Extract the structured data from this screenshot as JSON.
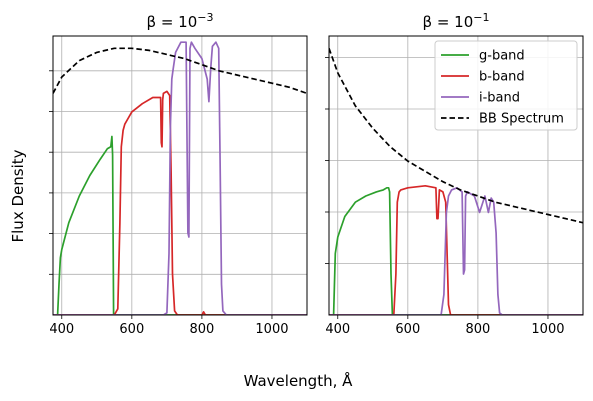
{
  "figure": {
    "ylabel": "Flux Density",
    "xlabel": "Wavelength, Å"
  },
  "legend": {
    "location": "upper right of right panel",
    "entries": [
      {
        "label": "g-band",
        "color": "#2ca02c",
        "style": "solid"
      },
      {
        "label": "b-band",
        "color": "#d62728",
        "style": "solid"
      },
      {
        "label": "i-band",
        "color": "#9467bd",
        "style": "solid"
      },
      {
        "label": "BB Spectrum",
        "color": "#000000",
        "style": "dashed"
      }
    ]
  },
  "chart_data": [
    {
      "type": "line",
      "title_prefix": "β = 10",
      "title_exp": "−3",
      "xlim": [
        375,
        1100
      ],
      "ylim": [
        0,
        1.36
      ],
      "xticks": [
        400,
        600,
        800,
        1000
      ],
      "ytick_count": 7,
      "grid": true,
      "series": [
        {
          "name": "g-band",
          "color": "#2ca02c",
          "x": [
            385,
            388,
            392,
            396,
            400,
            420,
            450,
            480,
            510,
            530,
            540,
            543,
            545,
            548,
            1100
          ],
          "y": [
            0,
            0,
            0.15,
            0.28,
            0.32,
            0.45,
            0.58,
            0.68,
            0.76,
            0.81,
            0.82,
            0.87,
            0.78,
            0,
            0
          ]
        },
        {
          "name": "b-band",
          "color": "#d62728",
          "x": [
            375,
            550,
            560,
            566,
            570,
            575,
            580,
            600,
            630,
            660,
            682,
            684,
            686,
            688,
            690,
            700,
            708,
            712,
            716,
            722,
            730,
            800,
            805,
            810,
            1100
          ],
          "y": [
            0,
            0,
            0.03,
            0.45,
            0.82,
            0.9,
            0.93,
            0.99,
            1.03,
            1.06,
            1.06,
            0.84,
            0.82,
            1.05,
            1.08,
            1.09,
            1.07,
            0.7,
            0.2,
            0.02,
            0,
            0,
            0.015,
            0,
            0
          ]
        },
        {
          "name": "i-band",
          "color": "#9467bd",
          "x": [
            375,
            690,
            700,
            706,
            710,
            714,
            718,
            725,
            740,
            755,
            760,
            763,
            766,
            770,
            780,
            800,
            815,
            820,
            825,
            830,
            840,
            848,
            852,
            856,
            860,
            870,
            1100
          ],
          "y": [
            0,
            0,
            0.01,
            0.3,
            0.92,
            1.15,
            1.2,
            1.28,
            1.33,
            1.33,
            0.4,
            0.38,
            1.3,
            1.33,
            1.3,
            1.25,
            1.15,
            1.04,
            1.2,
            1.31,
            1.33,
            1.3,
            0.75,
            0.15,
            0.02,
            0,
            0
          ]
        },
        {
          "name": "BB Spectrum",
          "color": "#000000",
          "dashed": true,
          "x": [
            375,
            400,
            450,
            500,
            550,
            600,
            650,
            700,
            750,
            800,
            850,
            900,
            950,
            1000,
            1050,
            1100
          ],
          "y": [
            1.08,
            1.16,
            1.24,
            1.28,
            1.3,
            1.3,
            1.29,
            1.27,
            1.25,
            1.22,
            1.19,
            1.17,
            1.15,
            1.13,
            1.11,
            1.08
          ]
        }
      ]
    },
    {
      "type": "line",
      "title_prefix": "β = 10",
      "title_exp": "−1",
      "xlim": [
        375,
        1100
      ],
      "ylim": [
        0,
        1.36
      ],
      "xticks": [
        400,
        600,
        800,
        1000
      ],
      "ytick_count": 6,
      "grid": true,
      "series": [
        {
          "name": "g-band",
          "color": "#2ca02c",
          "x": [
            385,
            388,
            393,
            400,
            420,
            450,
            480,
            510,
            530,
            540,
            545,
            548,
            552,
            556,
            1100
          ],
          "y": [
            0,
            0,
            0.3,
            0.38,
            0.48,
            0.55,
            0.58,
            0.6,
            0.61,
            0.62,
            0.62,
            0.6,
            0.2,
            0,
            0
          ]
        },
        {
          "name": "b-band",
          "color": "#d62728",
          "x": [
            375,
            560,
            566,
            570,
            575,
            580,
            600,
            650,
            680,
            683,
            686,
            690,
            700,
            708,
            712,
            716,
            722,
            730,
            1100
          ],
          "y": [
            0,
            0,
            0.2,
            0.55,
            0.6,
            0.61,
            0.62,
            0.63,
            0.62,
            0.47,
            0.47,
            0.61,
            0.6,
            0.55,
            0.3,
            0.05,
            0,
            0,
            0
          ]
        },
        {
          "name": "i-band",
          "color": "#9467bd",
          "x": [
            375,
            695,
            703,
            710,
            716,
            725,
            740,
            755,
            759,
            762,
            765,
            770,
            790,
            805,
            820,
            830,
            838,
            845,
            852,
            857,
            862,
            870,
            1100
          ],
          "y": [
            0,
            0,
            0.1,
            0.5,
            0.58,
            0.61,
            0.62,
            0.6,
            0.2,
            0.22,
            0.58,
            0.6,
            0.58,
            0.5,
            0.58,
            0.5,
            0.57,
            0.55,
            0.4,
            0.1,
            0.01,
            0,
            0
          ]
        },
        {
          "name": "BB Spectrum",
          "color": "#000000",
          "dashed": true,
          "x": [
            375,
            400,
            450,
            500,
            550,
            600,
            650,
            700,
            750,
            800,
            850,
            900,
            950,
            1000,
            1050,
            1100
          ],
          "y": [
            1.3,
            1.18,
            1.02,
            0.91,
            0.82,
            0.75,
            0.7,
            0.65,
            0.61,
            0.58,
            0.55,
            0.53,
            0.51,
            0.49,
            0.47,
            0.45
          ]
        }
      ]
    }
  ]
}
